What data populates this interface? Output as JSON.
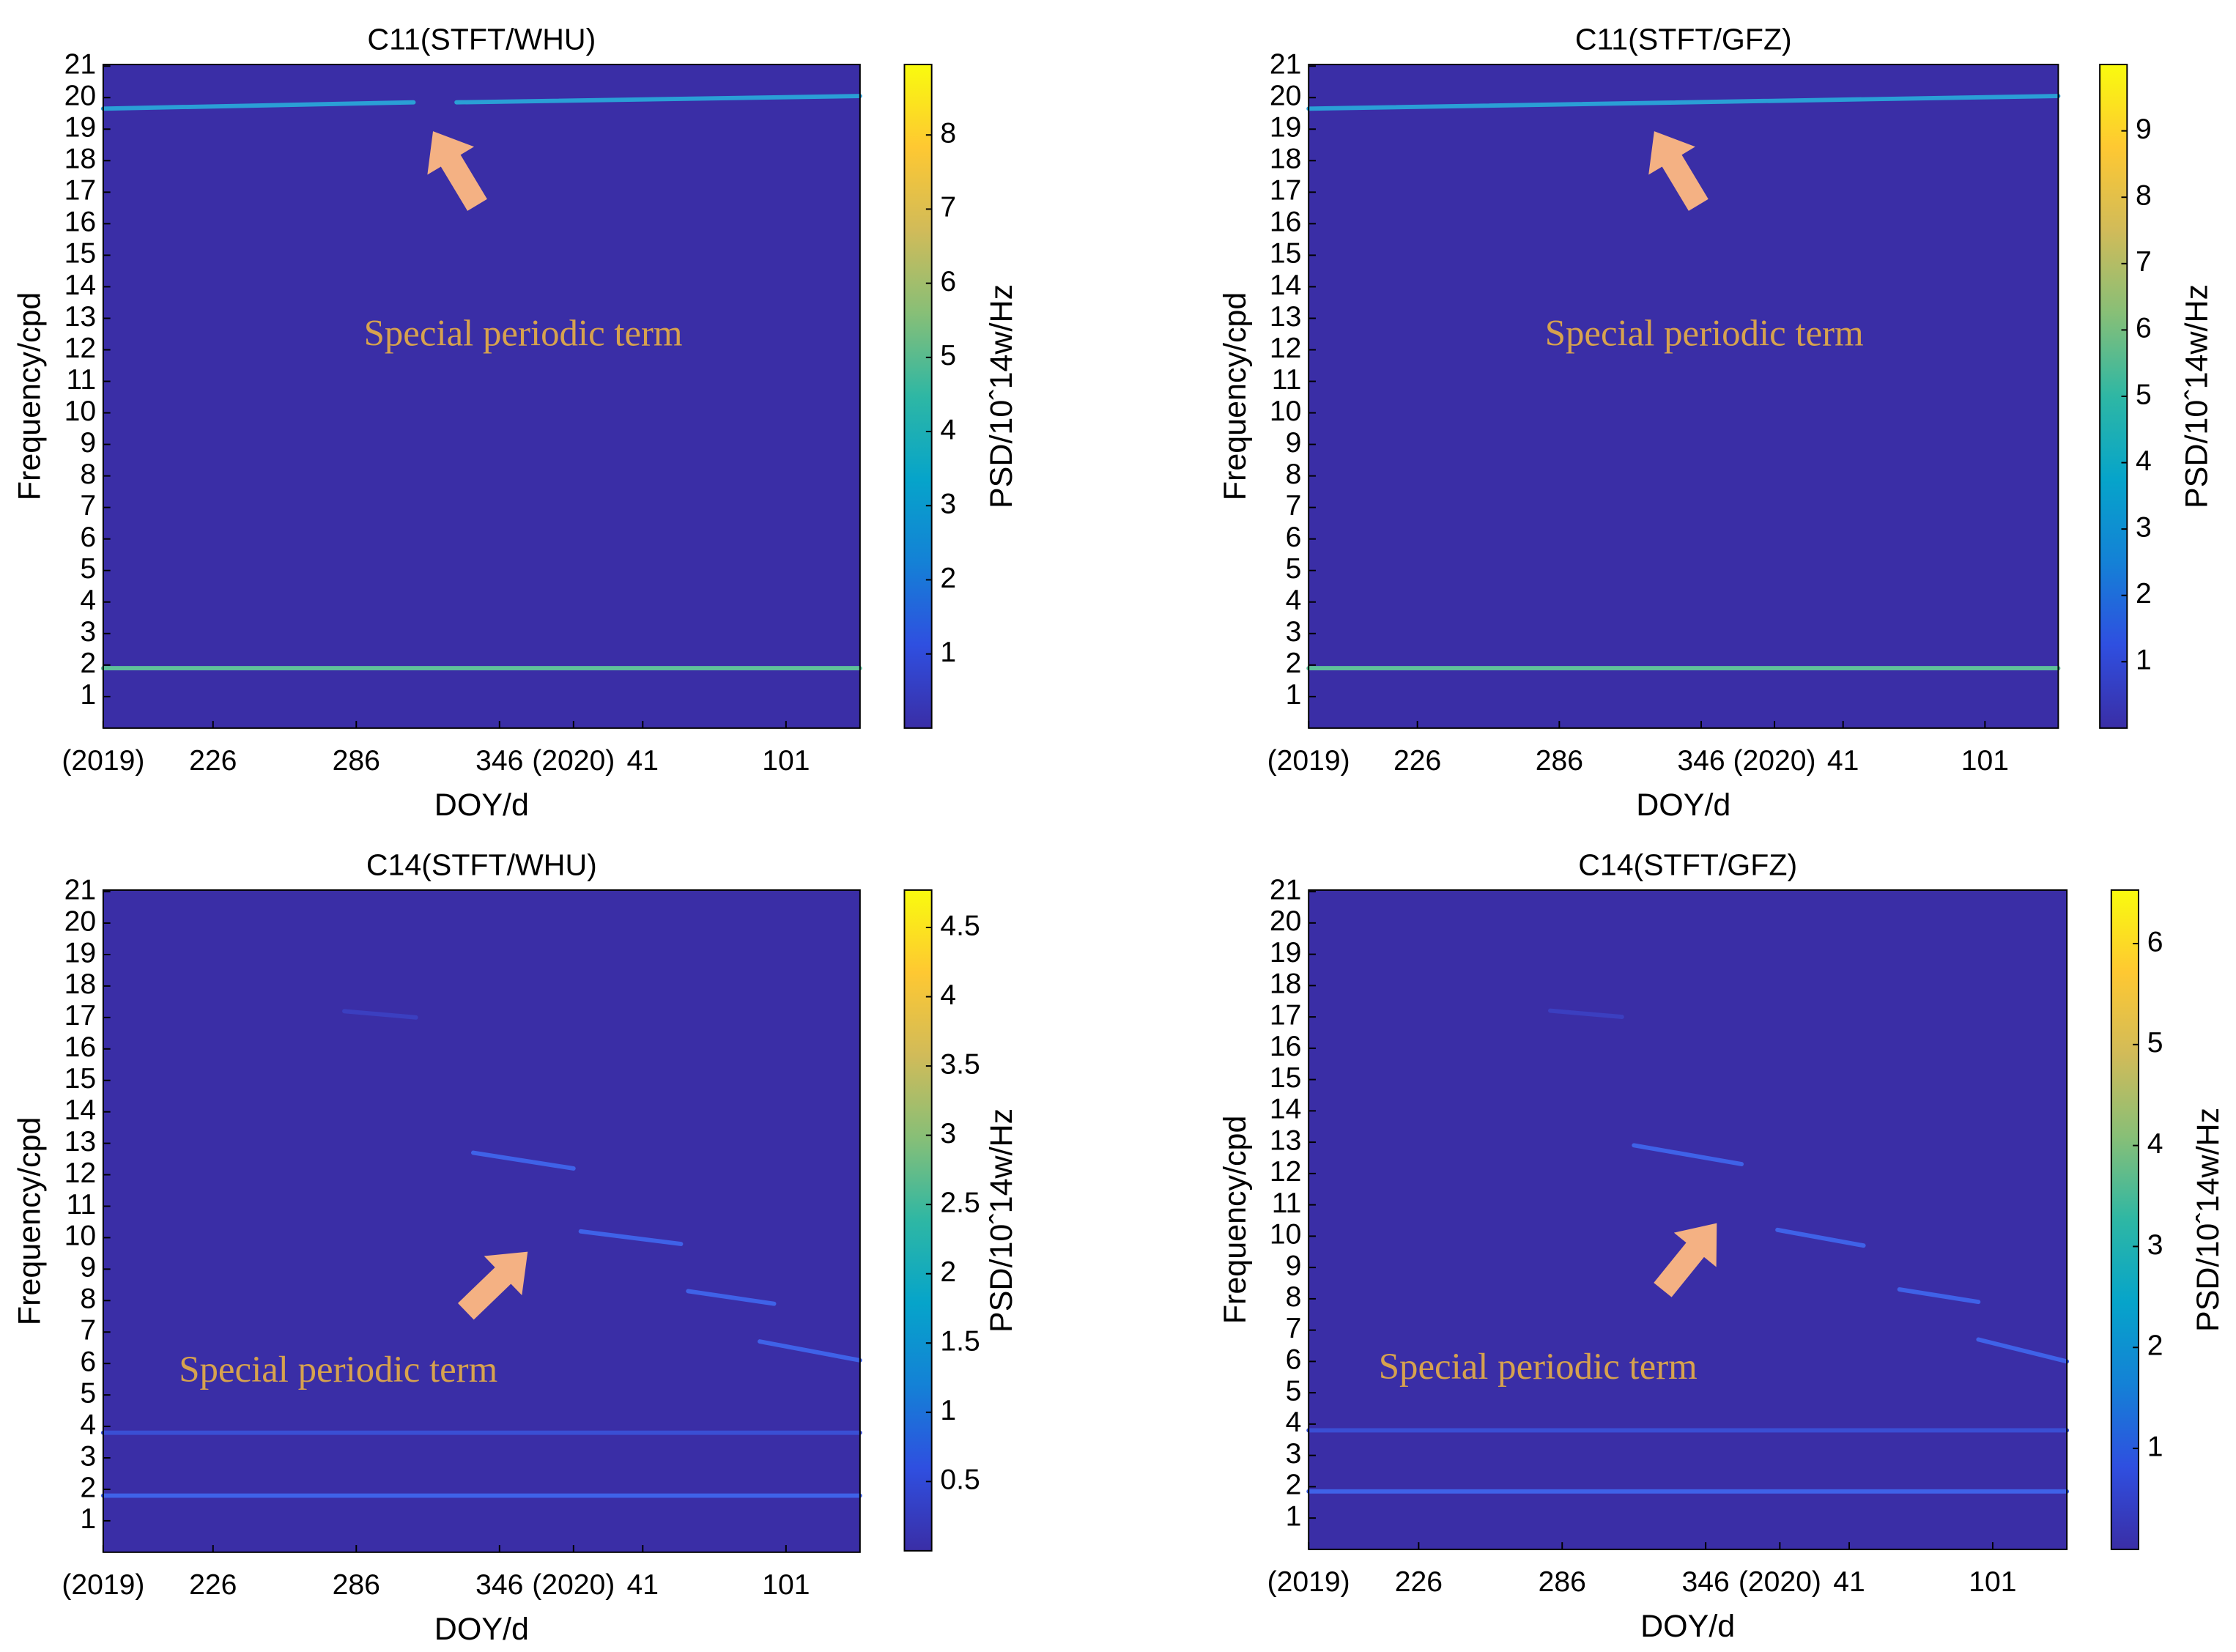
{
  "chart_data": [
    {
      "type": "spectrogram",
      "title": "C11(STFT/WHU)",
      "xlabel": "DOY/d",
      "ylabel": "Frequency/cpd",
      "colorbar_label": "PSD/10ˆ14w/Hz",
      "annotation": "Special periodic term",
      "xlim": [
        180,
        497
      ],
      "xticks": [
        {
          "value": 180,
          "label": "(2019)"
        },
        226,
        286,
        346,
        {
          "value": 377,
          "label": "(2020)"
        },
        {
          "value": 406,
          "label": "41"
        },
        {
          "value": 466,
          "label": "101"
        }
      ],
      "ylim": [
        0,
        21.05
      ],
      "yticks": [
        1,
        2,
        3,
        4,
        5,
        6,
        7,
        8,
        9,
        10,
        11,
        12,
        13,
        14,
        15,
        16,
        17,
        18,
        19,
        20,
        21
      ],
      "clim": [
        0,
        8.95
      ],
      "cticks": [
        1,
        2,
        3,
        4,
        5,
        6,
        7,
        8
      ],
      "colormap": [
        "#3a2ea6",
        "#2f4fe0",
        "#1481d6",
        "#06a4ca",
        "#2eb7a4",
        "#87bf77",
        "#d1bb59",
        "#fec832",
        "#f9fb0e"
      ],
      "series": [
        {
          "color": "#2a9fd6",
          "x": [
            180,
            310
          ],
          "values": [
            19.65,
            19.85
          ]
        },
        {
          "color": "#2a9fd6",
          "x": [
            328,
            497
          ],
          "values": [
            19.85,
            20.05
          ]
        },
        {
          "color": "#5fc09a",
          "x": [
            180,
            497
          ],
          "values": [
            1.9,
            1.9
          ]
        }
      ]
    },
    {
      "type": "spectrogram",
      "title": "C11(STFT/GFZ)",
      "xlabel": "DOY/d",
      "ylabel": "Frequency/cpd",
      "colorbar_label": "PSD/10ˆ14w/Hz",
      "annotation": "Special periodic term",
      "xlim": [
        180,
        497
      ],
      "xticks": [
        {
          "value": 180,
          "label": "(2019)"
        },
        226,
        286,
        346,
        {
          "value": 377,
          "label": "(2020)"
        },
        {
          "value": 406,
          "label": "41"
        },
        {
          "value": 466,
          "label": "101"
        }
      ],
      "ylim": [
        0,
        21.05
      ],
      "yticks": [
        1,
        2,
        3,
        4,
        5,
        6,
        7,
        8,
        9,
        10,
        11,
        12,
        13,
        14,
        15,
        16,
        17,
        18,
        19,
        20,
        21
      ],
      "clim": [
        0,
        10
      ],
      "cticks": [
        1,
        2,
        3,
        4,
        5,
        6,
        7,
        8,
        9
      ],
      "colormap": [
        "#3a2ea6",
        "#2f4fe0",
        "#1481d6",
        "#06a4ca",
        "#2eb7a4",
        "#87bf77",
        "#d1bb59",
        "#fec832",
        "#f9fb0e"
      ],
      "series": [
        {
          "color": "#2a9fd6",
          "x": [
            180,
            497
          ],
          "values": [
            19.65,
            20.05
          ]
        },
        {
          "color": "#5fc09a",
          "x": [
            180,
            497
          ],
          "values": [
            1.9,
            1.9
          ]
        }
      ]
    },
    {
      "type": "spectrogram",
      "title": "C14(STFT/WHU)",
      "xlabel": "DOY/d",
      "ylabel": "Frequency/cpd",
      "colorbar_label": "PSD/10ˆ14w/Hz",
      "annotation": "Special periodic term",
      "xlim": [
        180,
        497
      ],
      "xticks": [
        {
          "value": 180,
          "label": "(2019)"
        },
        226,
        286,
        346,
        {
          "value": 377,
          "label": "(2020)"
        },
        {
          "value": 406,
          "label": "41"
        },
        {
          "value": 466,
          "label": "101"
        }
      ],
      "ylim": [
        0,
        21.05
      ],
      "yticks": [
        1,
        2,
        3,
        4,
        5,
        6,
        7,
        8,
        9,
        10,
        11,
        12,
        13,
        14,
        15,
        16,
        17,
        18,
        19,
        20,
        21
      ],
      "clim": [
        0,
        4.77
      ],
      "cticks": [
        0.5,
        1,
        1.5,
        2,
        2.5,
        3,
        3.5,
        4,
        4.5
      ],
      "colormap": [
        "#3a2ea6",
        "#2f4fe0",
        "#1481d6",
        "#06a4ca",
        "#2eb7a4",
        "#87bf77",
        "#d1bb59",
        "#fec832",
        "#f9fb0e"
      ],
      "series": [
        {
          "color": "#3b3fc0",
          "x": [
            281,
            311
          ],
          "values": [
            17.2,
            17.0
          ]
        },
        {
          "color": "#3f62e8",
          "x": [
            335,
            377
          ],
          "values": [
            12.7,
            12.2
          ]
        },
        {
          "color": "#3f62e8",
          "x": [
            380,
            422
          ],
          "values": [
            10.2,
            9.8
          ]
        },
        {
          "color": "#3f62e8",
          "x": [
            425,
            461
          ],
          "values": [
            8.3,
            7.9
          ]
        },
        {
          "color": "#3f62e8",
          "x": [
            455,
            497
          ],
          "values": [
            6.7,
            6.1
          ]
        },
        {
          "color": "#3a4fd4",
          "x": [
            180,
            497
          ],
          "values": [
            3.8,
            3.8
          ]
        },
        {
          "color": "#3f62e8",
          "x": [
            180,
            497
          ],
          "values": [
            1.8,
            1.8
          ]
        }
      ]
    },
    {
      "type": "spectrogram",
      "title": "C14(STFT/GFZ)",
      "xlabel": "DOY/d",
      "ylabel": "Frequency/cpd",
      "colorbar_label": "PSD/10ˆ14w/Hz",
      "annotation": "Special periodic term",
      "xlim": [
        180,
        497
      ],
      "xticks": [
        {
          "value": 180,
          "label": "(2019)"
        },
        226,
        286,
        346,
        {
          "value": 377,
          "label": "(2020)"
        },
        {
          "value": 406,
          "label": "41"
        },
        {
          "value": 466,
          "label": "101"
        }
      ],
      "ylim": [
        0,
        21.05
      ],
      "yticks": [
        1,
        2,
        3,
        4,
        5,
        6,
        7,
        8,
        9,
        10,
        11,
        12,
        13,
        14,
        15,
        16,
        17,
        18,
        19,
        20,
        21
      ],
      "clim": [
        0,
        6.53
      ],
      "cticks": [
        1,
        2,
        3,
        4,
        5,
        6
      ],
      "colormap": [
        "#3a2ea6",
        "#2f4fe0",
        "#1481d6",
        "#06a4ca",
        "#2eb7a4",
        "#87bf77",
        "#d1bb59",
        "#fec832",
        "#f9fb0e"
      ],
      "series": [
        {
          "color": "#3b3fc0",
          "x": [
            281,
            311
          ],
          "values": [
            17.2,
            17.0
          ]
        },
        {
          "color": "#3f62e8",
          "x": [
            316,
            361
          ],
          "values": [
            12.9,
            12.3
          ]
        },
        {
          "color": "#3f62e8",
          "x": [
            376,
            412
          ],
          "values": [
            10.2,
            9.7
          ]
        },
        {
          "color": "#3f62e8",
          "x": [
            427,
            460
          ],
          "values": [
            8.3,
            7.9
          ]
        },
        {
          "color": "#3f62e8",
          "x": [
            460,
            497
          ],
          "values": [
            6.7,
            6.0
          ]
        },
        {
          "color": "#3a4fd4",
          "x": [
            180,
            497
          ],
          "values": [
            3.8,
            3.8
          ]
        },
        {
          "color": "#3f62e8",
          "x": [
            180,
            497
          ],
          "values": [
            1.85,
            1.85
          ]
        }
      ]
    }
  ]
}
